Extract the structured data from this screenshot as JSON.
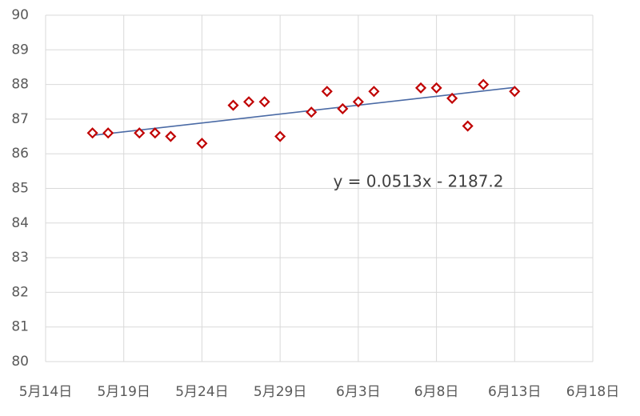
{
  "chart_data": {
    "type": "scatter",
    "x": [
      "05-17",
      "05-18",
      "05-20",
      "05-21",
      "05-22",
      "05-24",
      "05-26",
      "05-27",
      "05-28",
      "05-29",
      "05-31",
      "06-01",
      "06-02",
      "06-03",
      "06-04",
      "06-07",
      "06-08",
      "06-09",
      "06-10",
      "06-11",
      "06-13"
    ],
    "values": [
      86.6,
      86.6,
      86.6,
      86.6,
      86.5,
      86.3,
      87.4,
      87.5,
      87.5,
      86.5,
      87.2,
      87.8,
      87.3,
      87.5,
      87.8,
      87.9,
      87.9,
      87.6,
      86.8,
      88.0,
      87.8
    ],
    "color": "#c00000",
    "xlim": [
      "05-14",
      "06-18"
    ],
    "xticks": [
      {
        "value": "05-14",
        "label": "5月14日"
      },
      {
        "value": "05-19",
        "label": "5月19日"
      },
      {
        "value": "05-24",
        "label": "5月24日"
      },
      {
        "value": "05-29",
        "label": "5月29日"
      },
      {
        "value": "06-03",
        "label": "6月3日"
      },
      {
        "value": "06-08",
        "label": "6月8日"
      },
      {
        "value": "06-13",
        "label": "6月13日"
      },
      {
        "value": "06-18",
        "label": "6月18日"
      }
    ],
    "ylim": [
      80,
      90
    ],
    "yticks": [
      80,
      81,
      82,
      83,
      84,
      85,
      86,
      87,
      88,
      89,
      90
    ],
    "grid": true,
    "trendline": {
      "equation": "y = 0.0513x - 2187.2",
      "color": "#4a6aa5"
    }
  }
}
